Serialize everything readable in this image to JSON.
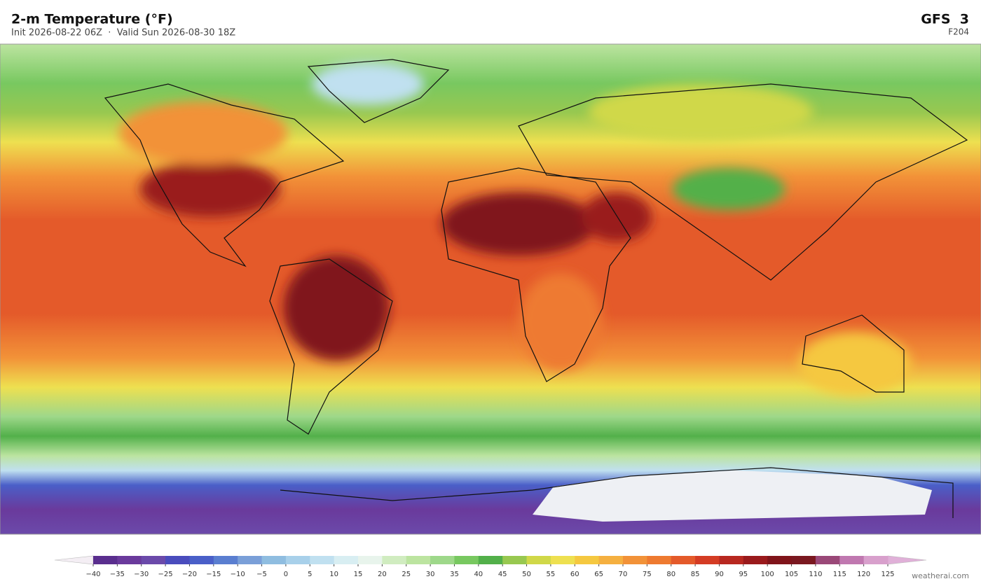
{
  "header": {
    "title": "2-m Temperature  (°F)",
    "subtitle": "Init 2026-08-22 06Z  ·  Valid Sun 2026-08-30 18Z",
    "model": "GFS  3",
    "forecast_hour": "F204"
  },
  "colorbar": {
    "ticks": [
      "−40",
      "−35",
      "−30",
      "−25",
      "−20",
      "−15",
      "−10",
      "−5",
      "0",
      "5",
      "10",
      "15",
      "20",
      "25",
      "30",
      "35",
      "40",
      "45",
      "50",
      "55",
      "60",
      "65",
      "70",
      "75",
      "80",
      "85",
      "90",
      "95",
      "100",
      "105",
      "110",
      "115",
      "120",
      "125"
    ],
    "under_color": "#f4eef4",
    "colors": [
      "#5a2e8e",
      "#6a3a9c",
      "#6b4aaa",
      "#4a4cbd",
      "#4a5fc8",
      "#5a7ed0",
      "#7a9fd8",
      "#8fbde0",
      "#a8d0ea",
      "#c0e0f0",
      "#d8eef2",
      "#e8f4ec",
      "#d0ecc0",
      "#bce4a0",
      "#9ed88a",
      "#78c860",
      "#52b04a",
      "#98c850",
      "#d0d848",
      "#eee050",
      "#f5c840",
      "#f5b040",
      "#f29238",
      "#ee7a30",
      "#e45a2a",
      "#d43c24",
      "#b82820",
      "#9a1a1c",
      "#80141a",
      "#7a1820",
      "#9a4878",
      "#c078b0",
      "#d8a0cc"
    ],
    "over_color": "#e0b0d8"
  },
  "footer": {
    "credit": "weatherai.com"
  }
}
